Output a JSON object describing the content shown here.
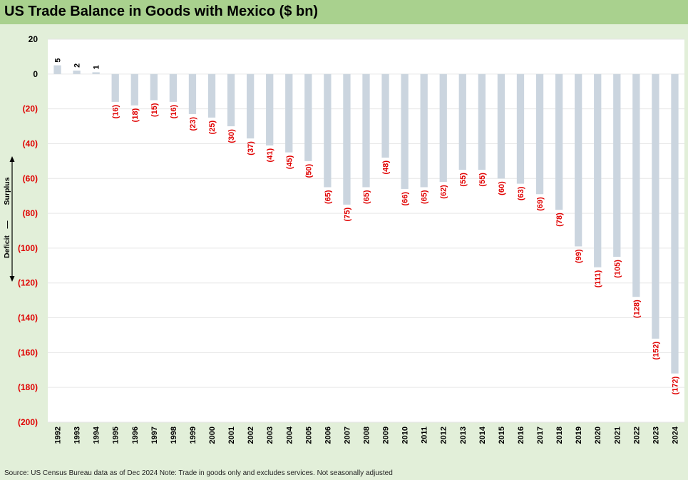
{
  "title": "US Trade Balance in Goods with Mexico ($ bn)",
  "source_note": "Source: US Census Bureau data as of Dec 2024 Note: Trade in goods only and excludes services. Not seasonally adjusted",
  "side_labels": {
    "surplus": "Surplus",
    "divider": "|",
    "deficit": "Deficit"
  },
  "colors": {
    "background": "#e2efd9",
    "title_bar": "#a9d18e",
    "plot_area": "#ffffff",
    "bar": "#cbd5df",
    "negative_label": "#e00000",
    "positive_label": "#000000"
  },
  "chart_data": {
    "type": "bar",
    "title": "US Trade Balance in Goods with Mexico ($ bn)",
    "xlabel": "",
    "ylabel": "",
    "ylim": [
      -200,
      20
    ],
    "yticks": [
      20,
      0,
      -20,
      -40,
      -60,
      -80,
      -100,
      -120,
      -140,
      -160,
      -180,
      -200
    ],
    "ytick_labels": [
      "20",
      "0",
      "(20)",
      "(40)",
      "(60)",
      "(80)",
      "(100)",
      "(120)",
      "(140)",
      "(160)",
      "(180)",
      "(200)"
    ],
    "grid": true,
    "legend": "none",
    "categories": [
      "1992",
      "1993",
      "1994",
      "1995",
      "1996",
      "1997",
      "1998",
      "1999",
      "2000",
      "2001",
      "2002",
      "2003",
      "2004",
      "2005",
      "2006",
      "2007",
      "2008",
      "2009",
      "2010",
      "2011",
      "2012",
      "2013",
      "2014",
      "2015",
      "2016",
      "2017",
      "2018",
      "2019",
      "2020",
      "2021",
      "2022",
      "2023",
      "2024"
    ],
    "values": [
      5,
      2,
      1,
      -16,
      -18,
      -15,
      -16,
      -23,
      -25,
      -30,
      -37,
      -41,
      -45,
      -50,
      -65,
      -75,
      -65,
      -48,
      -66,
      -65,
      -62,
      -55,
      -55,
      -60,
      -63,
      -69,
      -78,
      -99,
      -111,
      -105,
      -128,
      -152,
      -172
    ],
    "data_labels": [
      "5",
      "2",
      "1",
      "(16)",
      "(18)",
      "(15)",
      "(16)",
      "(23)",
      "(25)",
      "(30)",
      "(37)",
      "(41)",
      "(45)",
      "(50)",
      "(65)",
      "(75)",
      "(65)",
      "(48)",
      "(66)",
      "(65)",
      "(62)",
      "(55)",
      "(55)",
      "(60)",
      "(63)",
      "(69)",
      "(78)",
      "(99)",
      "(111)",
      "(105)",
      "(128)",
      "(152)",
      "(172)"
    ]
  }
}
